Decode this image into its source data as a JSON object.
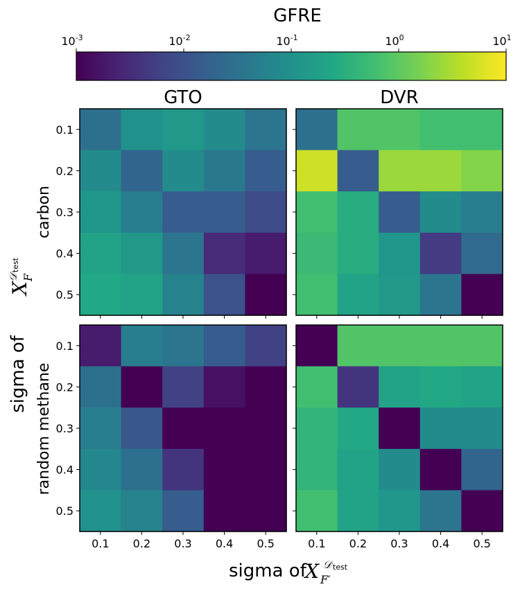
{
  "colorbar": {
    "label": "GFRE",
    "ticks": [
      {
        "base": "10",
        "exp": "-3"
      },
      {
        "base": "10",
        "exp": "-2"
      },
      {
        "base": "10",
        "exp": "-1"
      },
      {
        "base": "10",
        "exp": "0"
      },
      {
        "base": "10",
        "exp": "1"
      }
    ],
    "min_exp": -3,
    "max_exp": 1,
    "scale": "log",
    "colormap": "viridis"
  },
  "xlabel": {
    "prefix": "sigma of ",
    "sym": "X",
    "sub": "F′",
    "sup": "𝒟",
    "sup2": "test"
  },
  "ylabel": {
    "prefix": "sigma of ",
    "sym": "X",
    "sub": "F",
    "sup": "𝒟",
    "sup2": "test"
  },
  "chart_data": [
    {
      "type": "heatmap",
      "title": "GTO",
      "row_label": "carbon",
      "x": [
        "0.1",
        "0.2",
        "0.3",
        "0.4",
        "0.5"
      ],
      "y": [
        "0.1",
        "0.2",
        "0.3",
        "0.4",
        "0.5"
      ],
      "values": [
        [
          0.03,
          0.1,
          0.13,
          0.08,
          0.035
        ],
        [
          0.08,
          0.02,
          0.08,
          0.04,
          0.015
        ],
        [
          0.12,
          0.05,
          0.015,
          0.015,
          0.008
        ],
        [
          0.2,
          0.13,
          0.035,
          0.003,
          0.002
        ],
        [
          0.25,
          0.2,
          0.06,
          0.01,
          0.001
        ]
      ]
    },
    {
      "type": "heatmap",
      "title": "DVR",
      "row_label": "carbon",
      "x": [
        "0.1",
        "0.2",
        "0.3",
        "0.4",
        "0.5"
      ],
      "y": [
        "0.1",
        "0.2",
        "0.3",
        "0.4",
        "0.5"
      ],
      "values": [
        [
          0.03,
          0.8,
          0.8,
          0.6,
          0.6
        ],
        [
          5,
          0.015,
          2.5,
          2.5,
          1.8
        ],
        [
          0.6,
          0.3,
          0.015,
          0.08,
          0.05
        ],
        [
          0.5,
          0.3,
          0.12,
          0.005,
          0.025
        ],
        [
          0.6,
          0.2,
          0.13,
          0.035,
          0.001
        ]
      ]
    },
    {
      "type": "heatmap",
      "title": "",
      "row_label": "random methane",
      "x": [
        "0.1",
        "0.2",
        "0.3",
        "0.4",
        "0.5"
      ],
      "y": [
        "0.1",
        "0.2",
        "0.3",
        "0.4",
        "0.5"
      ],
      "values": [
        [
          0.002,
          0.05,
          0.035,
          0.015,
          0.006
        ],
        [
          0.03,
          0.001,
          0.006,
          0.0015,
          0.001
        ],
        [
          0.05,
          0.012,
          0.001,
          0.001,
          0.001
        ],
        [
          0.07,
          0.03,
          0.004,
          0.001,
          0.001
        ],
        [
          0.1,
          0.06,
          0.015,
          0.001,
          0.001
        ]
      ]
    },
    {
      "type": "heatmap",
      "title": "",
      "row_label": "random methane",
      "x": [
        "0.1",
        "0.2",
        "0.3",
        "0.4",
        "0.5"
      ],
      "y": [
        "0.1",
        "0.2",
        "0.3",
        "0.4",
        "0.5"
      ],
      "values": [
        [
          0.001,
          0.8,
          0.8,
          0.8,
          0.8
        ],
        [
          0.6,
          0.004,
          0.2,
          0.25,
          0.2
        ],
        [
          0.4,
          0.25,
          0.001,
          0.08,
          0.08
        ],
        [
          0.4,
          0.2,
          0.08,
          0.001,
          0.02
        ],
        [
          0.6,
          0.2,
          0.12,
          0.035,
          0.001
        ]
      ]
    }
  ]
}
